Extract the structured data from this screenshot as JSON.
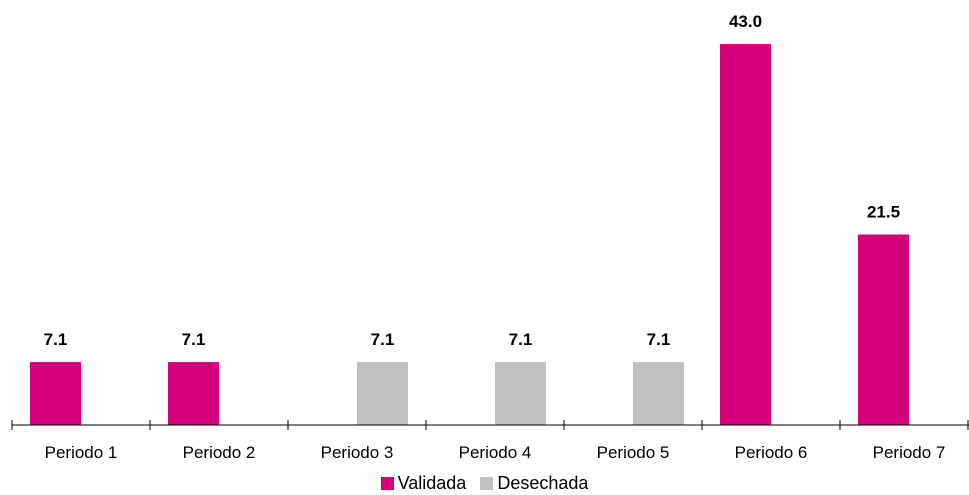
{
  "chart_data": {
    "type": "bar",
    "categories": [
      "Periodo 1",
      "Periodo 2",
      "Periodo 3",
      "Periodo 4",
      "Periodo 5",
      "Periodo 6",
      "Periodo 7"
    ],
    "series": [
      {
        "name": "Validada",
        "color": "#d6007e",
        "values": [
          7.1,
          7.1,
          null,
          null,
          null,
          43.0,
          21.5
        ]
      },
      {
        "name": "Desechada",
        "color": "#c0c0c0",
        "values": [
          null,
          null,
          7.1,
          7.1,
          7.1,
          null,
          null
        ]
      }
    ],
    "data_labels": [
      "7.1",
      "7.1",
      "7.1",
      "7.1",
      "7.1",
      "43.0",
      "21.5"
    ],
    "ylim": [
      0,
      43.0
    ],
    "grid": false,
    "legend_position": "bottom"
  },
  "legend": {
    "items": [
      {
        "label": "Validada",
        "color": "#d6007e"
      },
      {
        "label": "Desechada",
        "color": "#c0c0c0"
      }
    ]
  }
}
